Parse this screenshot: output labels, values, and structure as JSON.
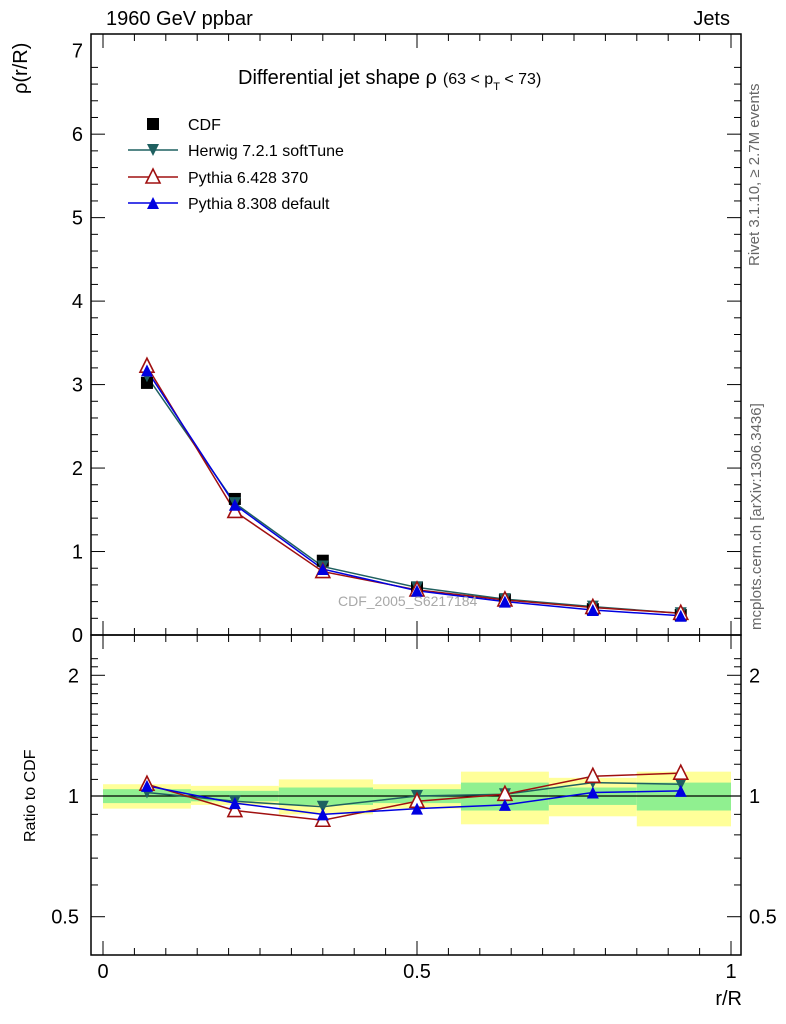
{
  "header": {
    "left": "1960 GeV ppbar",
    "right": "Jets"
  },
  "side_text": {
    "top": "Rivet 3.1.10, ≥ 2.7M events",
    "bottom": "mcplots.cern.ch [arXiv:1306.3436]"
  },
  "colors": {
    "cdf": "#000000",
    "herwig": "#1f6060",
    "pythia6": "#a01010",
    "pythia8": "#0000e0",
    "band_inner": "#90f090",
    "band_outer": "#ffff99"
  },
  "chart_data": [
    {
      "type": "line",
      "panel": "main",
      "title_main": "Differential jet shape ",
      "title_rho": "ρ",
      "title_sub": "(63 < p",
      "title_sub_index": "T",
      "title_sub_end": " < 73)",
      "ylabel": "ρ(r/R)",
      "watermark": "CDF_2005_S6217184",
      "ylim": [
        0,
        7.2
      ],
      "yticks": [
        "0",
        "1",
        "2",
        "3",
        "4",
        "5",
        "6",
        "7"
      ],
      "x": [
        0.07,
        0.21,
        0.35,
        0.5,
        0.64,
        0.78,
        0.92
      ],
      "series": [
        {
          "name": "CDF",
          "key": "cdf",
          "marker": "square",
          "values": [
            3.02,
            1.63,
            0.89,
            0.57,
            0.42,
            0.31,
            0.24
          ]
        },
        {
          "name": "Herwig 7.2.1 softTune",
          "key": "herwig",
          "marker": "tri-down",
          "values": [
            3.1,
            1.58,
            0.82,
            0.57,
            0.43,
            0.34,
            0.26
          ]
        },
        {
          "name": "Pythia 6.428 370",
          "key": "pythia6",
          "marker": "tri-up-open",
          "values": [
            3.22,
            1.48,
            0.76,
            0.54,
            0.42,
            0.33,
            0.26
          ]
        },
        {
          "name": "Pythia 8.308 default",
          "key": "pythia8",
          "marker": "tri-up",
          "values": [
            3.17,
            1.56,
            0.79,
            0.53,
            0.4,
            0.3,
            0.23
          ]
        }
      ]
    },
    {
      "type": "line",
      "panel": "ratio",
      "ylabel": "Ratio to CDF",
      "xlabel": "r/R",
      "xlim": [
        0,
        1
      ],
      "xticks": [
        "0",
        "0.5",
        "1"
      ],
      "yticks": [
        "0.5",
        "1",
        "2"
      ],
      "x": [
        0.07,
        0.21,
        0.35,
        0.5,
        0.64,
        0.78,
        0.92
      ],
      "bands": {
        "edges": [
          0,
          0.14,
          0.28,
          0.43,
          0.57,
          0.71,
          0.85,
          1.0
        ],
        "inner": [
          [
            0.96,
            1.04
          ],
          [
            0.97,
            1.03
          ],
          [
            0.95,
            1.05
          ],
          [
            0.96,
            1.04
          ],
          [
            0.92,
            1.08
          ],
          [
            0.95,
            1.05
          ],
          [
            0.92,
            1.08
          ]
        ],
        "outer": [
          [
            0.93,
            1.07
          ],
          [
            0.95,
            1.06
          ],
          [
            0.9,
            1.1
          ],
          [
            0.93,
            1.07
          ],
          [
            0.85,
            1.15
          ],
          [
            0.89,
            1.11
          ],
          [
            0.84,
            1.15
          ]
        ]
      },
      "series": [
        {
          "name": "Herwig 7.2.1 softTune",
          "key": "herwig",
          "marker": "tri-down",
          "values": [
            1.02,
            0.97,
            0.94,
            1.0,
            1.01,
            1.08,
            1.07
          ]
        },
        {
          "name": "Pythia 6.428 370",
          "key": "pythia6",
          "marker": "tri-up-open",
          "values": [
            1.07,
            0.92,
            0.87,
            0.97,
            1.01,
            1.12,
            1.14
          ]
        },
        {
          "name": "Pythia 8.308 default",
          "key": "pythia8",
          "marker": "tri-up",
          "values": [
            1.06,
            0.96,
            0.9,
            0.93,
            0.95,
            1.02,
            1.03
          ]
        }
      ]
    }
  ]
}
